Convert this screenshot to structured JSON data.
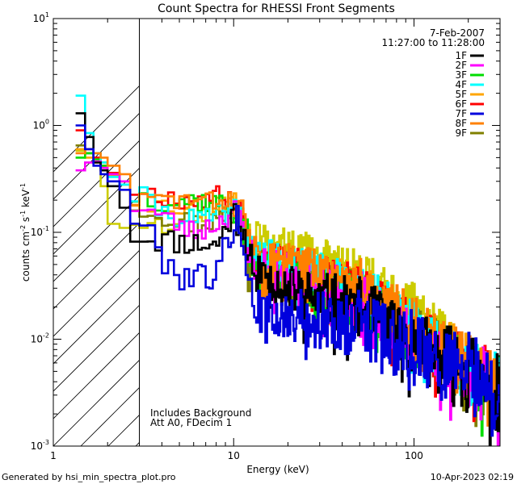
{
  "chart_data": {
    "type": "line",
    "title": "Count Spectra for RHESSI Front Segments",
    "xlabel": "Energy (keV)",
    "ylabel": "counts cm",
    "ylabel_sup1": "-2",
    "ylabel_mid": " s",
    "ylabel_sup2": "-1",
    "ylabel_mid2": " keV",
    "ylabel_sup3": "-1",
    "xscale": "log",
    "yscale": "log",
    "xlim": [
      1,
      300
    ],
    "ylim": [
      0.001,
      10
    ],
    "x_ticks": [
      {
        "value": 1,
        "label": "1"
      },
      {
        "value": 10,
        "label": "10"
      },
      {
        "value": 100,
        "label": "100"
      }
    ],
    "y_ticks": [
      {
        "exp": -3,
        "base": "10",
        "sup": "-3"
      },
      {
        "exp": -2,
        "base": "10",
        "sup": "-2"
      },
      {
        "exp": -1,
        "base": "10",
        "sup": "-1"
      },
      {
        "exp": 0,
        "base": "10",
        "sup": "0"
      },
      {
        "exp": 1,
        "base": "10",
        "sup": "1"
      }
    ],
    "excluded_region": {
      "xmin": 1,
      "xmax": 3
    },
    "legend": {
      "date": "7-Feb-2007",
      "time_range": "11:27:00 to 11:28:00",
      "placement": "top-right"
    },
    "annotations": [
      "Includes Background",
      "Att A0, FDecim 1"
    ],
    "footer_left": "Generated by hsi_min_spectra_plot.pro",
    "footer_right": "10-Apr-2023 02:19",
    "series": [
      {
        "name": "1F",
        "color": "#000000",
        "shift": 0.62,
        "noise": 0.18,
        "seed": 11,
        "low": [
          1.3,
          0.78,
          0.45,
          0.38,
          0.27,
          0.17
        ],
        "anchors": [
          [
            3,
            0.095
          ],
          [
            4,
            0.085
          ],
          [
            6,
            0.08
          ],
          [
            8,
            0.075
          ],
          [
            10,
            0.15
          ],
          [
            11,
            0.13
          ],
          [
            13,
            0.045
          ],
          [
            20,
            0.03
          ],
          [
            30,
            0.024
          ],
          [
            50,
            0.02
          ],
          [
            100,
            0.009
          ],
          [
            200,
            0.005
          ],
          [
            290,
            0.003
          ]
        ]
      },
      {
        "name": "2F",
        "color": "#ff00ff",
        "shift": 1.0,
        "noise": 0.16,
        "seed": 23,
        "low": [
          0.38,
          0.45,
          0.46,
          0.4,
          0.35,
          0.3
        ],
        "anchors": [
          [
            3,
            0.18
          ],
          [
            4,
            0.14
          ],
          [
            6,
            0.1
          ],
          [
            8,
            0.12
          ],
          [
            10,
            0.16
          ],
          [
            11,
            0.13
          ],
          [
            13,
            0.05
          ],
          [
            20,
            0.04
          ],
          [
            30,
            0.032
          ],
          [
            50,
            0.025
          ],
          [
            100,
            0.01
          ],
          [
            200,
            0.005
          ],
          [
            290,
            0.003
          ]
        ]
      },
      {
        "name": "3F",
        "color": "#00dd00",
        "shift": 1.0,
        "noise": 0.16,
        "seed": 37,
        "low": [
          0.5,
          0.55,
          0.48,
          0.42,
          0.33,
          0.28
        ],
        "anchors": [
          [
            3,
            0.22
          ],
          [
            4,
            0.2
          ],
          [
            6,
            0.2
          ],
          [
            8,
            0.19
          ],
          [
            10,
            0.16
          ],
          [
            11,
            0.13
          ],
          [
            13,
            0.055
          ],
          [
            20,
            0.038
          ],
          [
            30,
            0.03
          ],
          [
            50,
            0.022
          ],
          [
            100,
            0.01
          ],
          [
            200,
            0.005
          ],
          [
            290,
            0.0035
          ]
        ]
      },
      {
        "name": "4F",
        "color": "#00ffff",
        "shift": 1.0,
        "noise": 0.15,
        "seed": 41,
        "low": [
          1.9,
          0.85,
          0.55,
          0.45,
          0.33,
          0.28
        ],
        "anchors": [
          [
            3,
            0.22
          ],
          [
            4,
            0.16
          ],
          [
            6,
            0.13
          ],
          [
            8,
            0.14
          ],
          [
            10,
            0.16
          ],
          [
            11,
            0.13
          ],
          [
            13,
            0.065
          ],
          [
            20,
            0.05
          ],
          [
            30,
            0.04
          ],
          [
            50,
            0.03
          ],
          [
            100,
            0.013
          ],
          [
            200,
            0.005
          ],
          [
            290,
            0.0035
          ]
        ]
      },
      {
        "name": "5F",
        "color": "#ffa500",
        "shift": 1.0,
        "noise": 0.15,
        "seed": 53,
        "low": [
          0.6,
          0.5,
          0.45,
          0.4,
          0.34,
          0.3
        ],
        "anchors": [
          [
            3,
            0.2
          ],
          [
            4,
            0.18
          ],
          [
            6,
            0.17
          ],
          [
            8,
            0.18
          ],
          [
            10,
            0.18
          ],
          [
            11,
            0.14
          ],
          [
            13,
            0.06
          ],
          [
            20,
            0.045
          ],
          [
            30,
            0.038
          ],
          [
            50,
            0.03
          ],
          [
            100,
            0.012
          ],
          [
            200,
            0.006
          ],
          [
            290,
            0.0035
          ]
        ]
      },
      {
        "name": "6F",
        "color": "#ff0000",
        "shift": 1.0,
        "noise": 0.14,
        "seed": 67,
        "low": [
          0.9,
          0.6,
          0.5,
          0.42,
          0.36,
          0.3
        ],
        "anchors": [
          [
            3,
            0.25
          ],
          [
            4,
            0.22
          ],
          [
            6,
            0.2
          ],
          [
            8,
            0.22
          ],
          [
            10,
            0.2
          ],
          [
            11,
            0.14
          ],
          [
            13,
            0.06
          ],
          [
            20,
            0.05
          ],
          [
            30,
            0.04
          ],
          [
            50,
            0.03
          ],
          [
            100,
            0.012
          ],
          [
            200,
            0.006
          ],
          [
            290,
            0.0035
          ]
        ]
      },
      {
        "name": "7F",
        "color": "#0000dd",
        "shift": 0.45,
        "noise": 0.2,
        "seed": 79,
        "low": [
          1.0,
          0.6,
          0.42,
          0.35,
          0.3,
          0.25
        ],
        "anchors": [
          [
            3,
            0.14
          ],
          [
            4,
            0.06
          ],
          [
            5,
            0.04
          ],
          [
            6,
            0.04
          ],
          [
            8,
            0.04
          ],
          [
            10,
            0.12
          ],
          [
            11,
            0.12
          ],
          [
            13,
            0.018
          ],
          [
            20,
            0.017
          ],
          [
            30,
            0.015
          ],
          [
            50,
            0.014
          ],
          [
            100,
            0.008
          ],
          [
            200,
            0.005
          ],
          [
            290,
            0.0028
          ]
        ]
      },
      {
        "name": "8F",
        "color": "#ff8000",
        "shift": 1.0,
        "noise": 0.14,
        "seed": 83,
        "low": [
          0.55,
          0.6,
          0.55,
          0.5,
          0.42,
          0.35
        ],
        "anchors": [
          [
            3,
            0.2
          ],
          [
            4,
            0.2
          ],
          [
            6,
            0.2
          ],
          [
            8,
            0.19
          ],
          [
            10,
            0.2
          ],
          [
            11,
            0.16
          ],
          [
            13,
            0.065
          ],
          [
            20,
            0.055
          ],
          [
            30,
            0.045
          ],
          [
            50,
            0.035
          ],
          [
            100,
            0.014
          ],
          [
            200,
            0.006
          ],
          [
            290,
            0.0035
          ]
        ]
      },
      {
        "name": "9F",
        "color": "#808000",
        "shift": 1.0,
        "noise": 0.16,
        "seed": 97,
        "low": [
          0.65,
          0.55,
          0.5,
          0.45,
          0.35,
          0.28
        ],
        "anchors": [
          [
            3,
            0.18
          ],
          [
            4,
            0.15
          ],
          [
            6,
            0.12
          ],
          [
            8,
            0.13
          ],
          [
            10,
            0.15
          ],
          [
            11,
            0.12
          ],
          [
            13,
            0.055
          ],
          [
            20,
            0.035
          ],
          [
            30,
            0.03
          ],
          [
            50,
            0.026
          ],
          [
            100,
            0.011
          ],
          [
            200,
            0.005
          ],
          [
            290,
            0.003
          ]
        ]
      },
      {
        "name": "",
        "color": "#cccc00",
        "shift": 1.0,
        "noise": 0.14,
        "seed": 109,
        "low": [
          0.58,
          0.55,
          0.47,
          0.27,
          0.12,
          0.11
        ],
        "anchors": [
          [
            3,
            0.13
          ],
          [
            4,
            0.12
          ],
          [
            6,
            0.14
          ],
          [
            8,
            0.17
          ],
          [
            10,
            0.18
          ],
          [
            11,
            0.12
          ],
          [
            13,
            0.09
          ],
          [
            20,
            0.075
          ],
          [
            30,
            0.06
          ],
          [
            50,
            0.04
          ],
          [
            100,
            0.02
          ],
          [
            200,
            0.005
          ],
          [
            290,
            0.003
          ]
        ]
      }
    ]
  }
}
